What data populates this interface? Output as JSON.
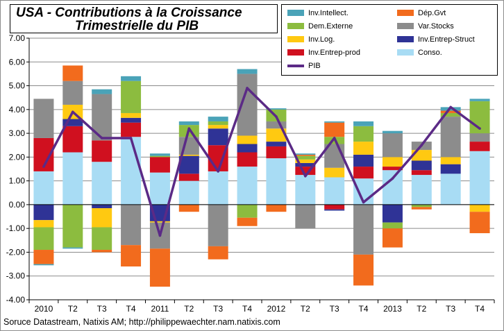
{
  "title": {
    "line1": "USA - Contributions à la Croissance",
    "line2": "Trimestrielle du PIB"
  },
  "source": "Soruce Datastream, Natixis AM;  http://philippewaechter.nam.natixis.com",
  "legend": [
    {
      "key": "inv_intellect",
      "label": "Inv.Intellect.",
      "color": "#4aa3b8",
      "kind": "bar"
    },
    {
      "key": "dep_gvt",
      "label": "Dép.Gvt",
      "color": "#f26b1d",
      "kind": "bar"
    },
    {
      "key": "dem_externe",
      "label": "Dem.Externe",
      "color": "#8cbc3f",
      "kind": "bar"
    },
    {
      "key": "var_stocks",
      "label": "Var.Stocks",
      "color": "#8c8c8c",
      "kind": "bar"
    },
    {
      "key": "inv_log",
      "label": "Inv.Log.",
      "color": "#ffc911",
      "kind": "bar"
    },
    {
      "key": "inv_entrep_struct",
      "label": "Inv.Entrep-Struct",
      "color": "#2f3396",
      "kind": "bar"
    },
    {
      "key": "inv_entrep_prod",
      "label": "Inv.Entrep-prod",
      "color": "#d0101f",
      "kind": "bar"
    },
    {
      "key": "conso",
      "label": "Conso.",
      "color": "#a8dcf4",
      "kind": "bar"
    },
    {
      "key": "pib",
      "label": "PIB",
      "color": "#5b2a86",
      "kind": "line"
    }
  ],
  "chart_data": {
    "type": "bar",
    "stacked": true,
    "categories": [
      "2010",
      "T2",
      "T3",
      "T4",
      "2011",
      "T2",
      "T3",
      "T4",
      "2012",
      "T2",
      "T3",
      "T4",
      "2013",
      "T2",
      "T3",
      "T4"
    ],
    "ylim": [
      -4.0,
      7.0
    ],
    "yticks": [
      "-4.00",
      "-3.00",
      "-2.00",
      "-1.00",
      "0.00",
      "1.00",
      "2.00",
      "3.00",
      "4.00",
      "5.00",
      "6.00",
      "7.00"
    ],
    "grid": true,
    "series": [
      {
        "name": "Conso.",
        "key": "conso",
        "values": [
          1.4,
          2.2,
          1.8,
          2.85,
          1.35,
          1.0,
          1.4,
          1.6,
          1.95,
          1.25,
          1.15,
          1.1,
          1.45,
          1.25,
          1.3,
          2.25
        ]
      },
      {
        "name": "Inv.Entrep-prod",
        "key": "inv_entrep_prod",
        "values": [
          1.4,
          1.1,
          0.9,
          0.6,
          0.65,
          0.3,
          1.1,
          0.6,
          0.5,
          0.35,
          -0.2,
          0.5,
          0.15,
          0.2,
          0.0,
          0.4
        ]
      },
      {
        "name": "Inv.Entrep-Struct",
        "key": "inv_entrep_struct",
        "values": [
          -0.65,
          0.3,
          -0.15,
          0.2,
          -0.7,
          0.75,
          0.7,
          0.35,
          0.2,
          0.15,
          -0.05,
          0.5,
          -0.75,
          0.4,
          0.4,
          0.0
        ]
      },
      {
        "name": "Inv.Log.",
        "key": "inv_log",
        "values": [
          -0.3,
          0.6,
          -0.8,
          0.2,
          -0.05,
          0.05,
          0.15,
          0.35,
          0.55,
          0.15,
          0.4,
          0.55,
          0.4,
          0.45,
          0.3,
          -0.3
        ]
      },
      {
        "name": "Var.Stocks",
        "key": "var_stocks",
        "values": [
          1.65,
          1.0,
          1.95,
          -1.7,
          -1.1,
          0.75,
          -1.75,
          2.6,
          0.3,
          -1.0,
          1.0,
          -2.1,
          1.0,
          0.35,
          1.7,
          0.35
        ]
      },
      {
        "name": "Dem.Externe",
        "key": "dem_externe",
        "values": [
          -0.95,
          -1.8,
          -0.95,
          1.35,
          0.05,
          0.5,
          0.15,
          -0.55,
          0.5,
          0.15,
          0.3,
          0.65,
          -0.25,
          -0.1,
          0.15,
          1.35
        ]
      },
      {
        "name": "Dép.Gvt",
        "key": "dep_gvt",
        "values": [
          -0.6,
          0.65,
          -0.1,
          -0.9,
          -1.6,
          -0.3,
          -0.55,
          -0.35,
          -0.3,
          0.05,
          0.6,
          -1.3,
          -0.8,
          -0.1,
          0.1,
          -0.9
        ]
      },
      {
        "name": "Inv.Intellect.",
        "key": "inv_intellect",
        "values": [
          -0.05,
          -0.05,
          0.2,
          0.2,
          0.1,
          0.15,
          0.2,
          0.2,
          0.05,
          0.05,
          0.05,
          0.2,
          0.1,
          0.0,
          0.15,
          0.1
        ]
      }
    ],
    "line": {
      "name": "PIB",
      "key": "pib",
      "values": [
        1.6,
        3.9,
        2.8,
        2.8,
        -1.3,
        3.2,
        1.4,
        4.9,
        3.7,
        1.2,
        2.8,
        0.1,
        1.1,
        2.5,
        4.1,
        3.2
      ]
    }
  }
}
